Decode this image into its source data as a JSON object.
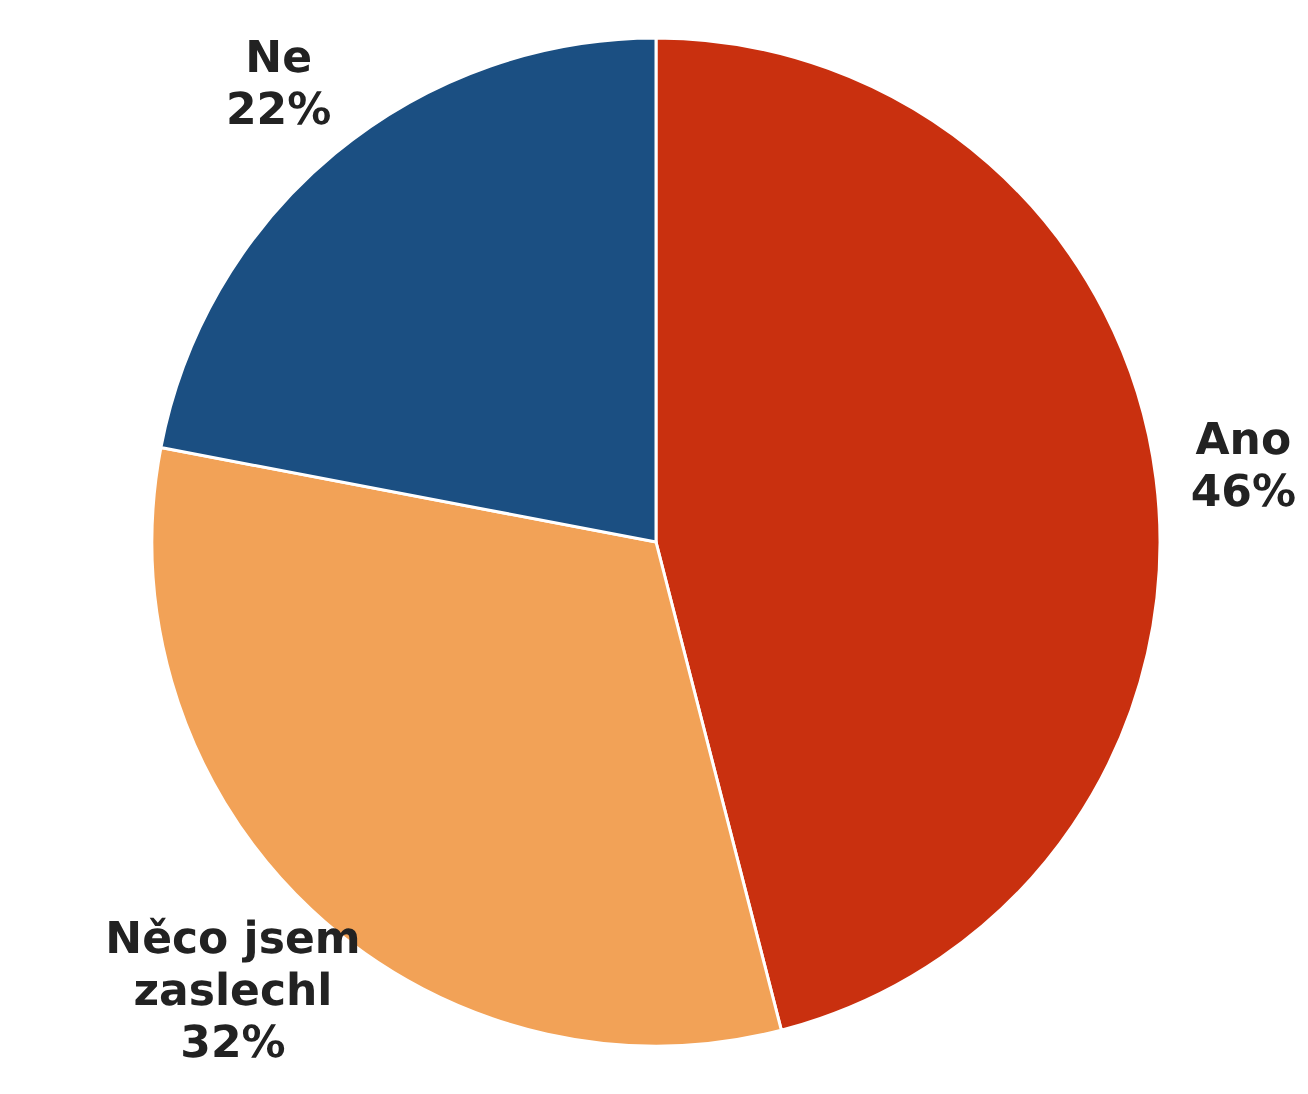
{
  "chart_data": {
    "type": "pie",
    "categories": [
      "Ano",
      "Něco jsem zaslechl",
      "Ne"
    ],
    "values": [
      46,
      32,
      22
    ],
    "value_labels": [
      "46%",
      "32%",
      "22%"
    ],
    "colors": [
      "#c9300f",
      "#f2a257",
      "#1b4f82"
    ]
  }
}
